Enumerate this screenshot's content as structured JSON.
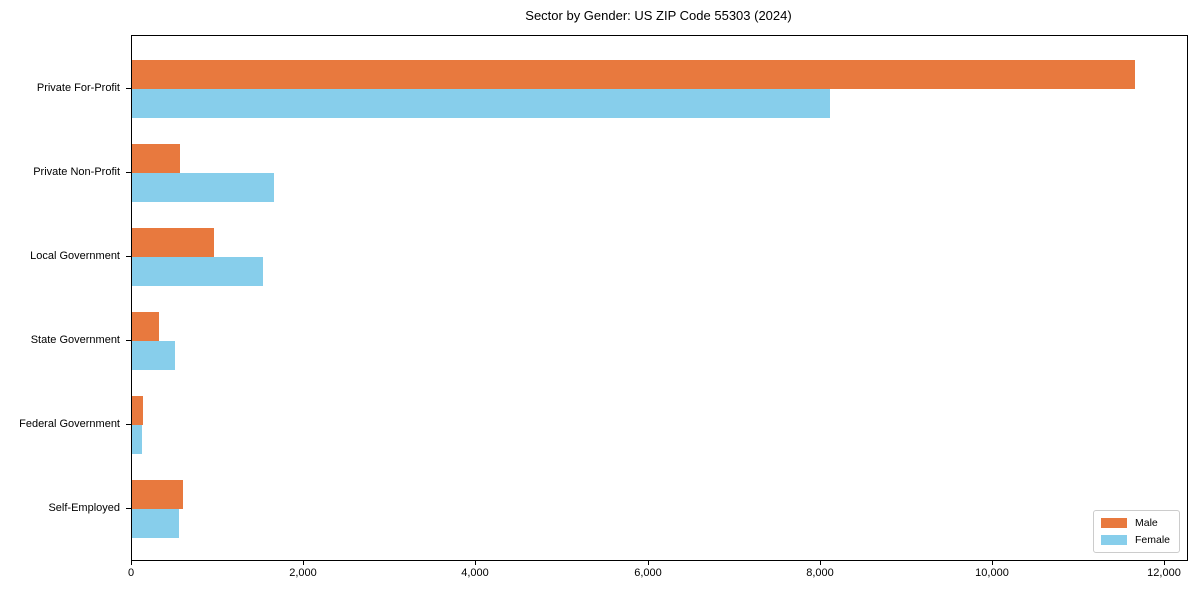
{
  "chart_data": {
    "type": "bar",
    "orientation": "horizontal",
    "title": "Sector by Gender: US ZIP Code 55303 (2024)",
    "categories": [
      "Private For-Profit",
      "Private Non-Profit",
      "Local Government",
      "State Government",
      "Federal Government",
      "Self-Employed"
    ],
    "series": [
      {
        "name": "Male",
        "color": "#e8793e",
        "values": [
          11650,
          560,
          955,
          310,
          130,
          590
        ]
      },
      {
        "name": "Female",
        "color": "#87ceeb",
        "values": [
          8100,
          1650,
          1520,
          505,
          120,
          550
        ]
      }
    ],
    "xlim": [
      0,
      12250
    ],
    "xticks": [
      0,
      2000,
      4000,
      6000,
      8000,
      10000,
      12000
    ],
    "xtick_labels": [
      "0",
      "2,000",
      "4,000",
      "6,000",
      "8,000",
      "10,000",
      "12,000"
    ],
    "xlabel": "",
    "ylabel": "",
    "grid": false,
    "legend_position": "lower right",
    "plot_border_color": "#000000",
    "background_color": "#ffffff"
  }
}
